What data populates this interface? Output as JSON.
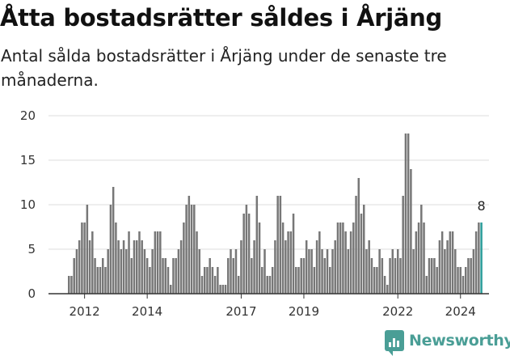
{
  "header": {
    "title": "Åtta bostadsrätter såldes i Årjäng",
    "subtitle": "Antal sålda bostadsrätter i Årjäng under de senaste tre månaderna."
  },
  "brand": {
    "name": "Newsworthy",
    "icon": "newsworthy-logo-icon",
    "color": "#4a9e96"
  },
  "chart_data": {
    "type": "bar",
    "title": "Åtta bostadsrätter såldes i Årjäng",
    "subtitle": "Antal sålda bostadsrätter i Årjäng under de senaste tre månaderna.",
    "x_ticks": [
      "2012",
      "2014",
      "2017",
      "2019",
      "2022",
      "2024"
    ],
    "x_tick_month_index": [
      6,
      30,
      66,
      90,
      126,
      150
    ],
    "y_ticks": [
      0,
      5,
      10,
      15,
      20
    ],
    "ylim": [
      0,
      20
    ],
    "grid": "horizontal",
    "bar_color": "#777777",
    "highlight_color": "#2a9d9a",
    "highlight_label": "8",
    "period": "rolling three months, monthly",
    "values": [
      2,
      2,
      4,
      5,
      6,
      8,
      8,
      10,
      6,
      7,
      4,
      3,
      3,
      4,
      3,
      5,
      10,
      12,
      8,
      6,
      5,
      6,
      5,
      7,
      4,
      6,
      6,
      7,
      6,
      5,
      4,
      3,
      5,
      7,
      7,
      7,
      4,
      4,
      3,
      1,
      4,
      4,
      5,
      6,
      8,
      10,
      11,
      10,
      10,
      7,
      5,
      2,
      3,
      3,
      4,
      3,
      2,
      3,
      1,
      1,
      1,
      4,
      5,
      4,
      5,
      2,
      6,
      9,
      10,
      9,
      4,
      6,
      11,
      8,
      3,
      5,
      2,
      2,
      3,
      6,
      11,
      11,
      8,
      6,
      7,
      7,
      9,
      3,
      3,
      4,
      4,
      6,
      5,
      5,
      3,
      6,
      7,
      5,
      4,
      5,
      3,
      5,
      6,
      8,
      8,
      8,
      7,
      5,
      7,
      8,
      11,
      13,
      9,
      10,
      5,
      6,
      4,
      3,
      3,
      5,
      4,
      2,
      1,
      4,
      5,
      4,
      5,
      4,
      11,
      18,
      18,
      14,
      5,
      7,
      8,
      10,
      8,
      2,
      4,
      4,
      4,
      3,
      6,
      7,
      5,
      6,
      7,
      7,
      5,
      3,
      3,
      2,
      3,
      4,
      4,
      5,
      7,
      8,
      8
    ]
  }
}
